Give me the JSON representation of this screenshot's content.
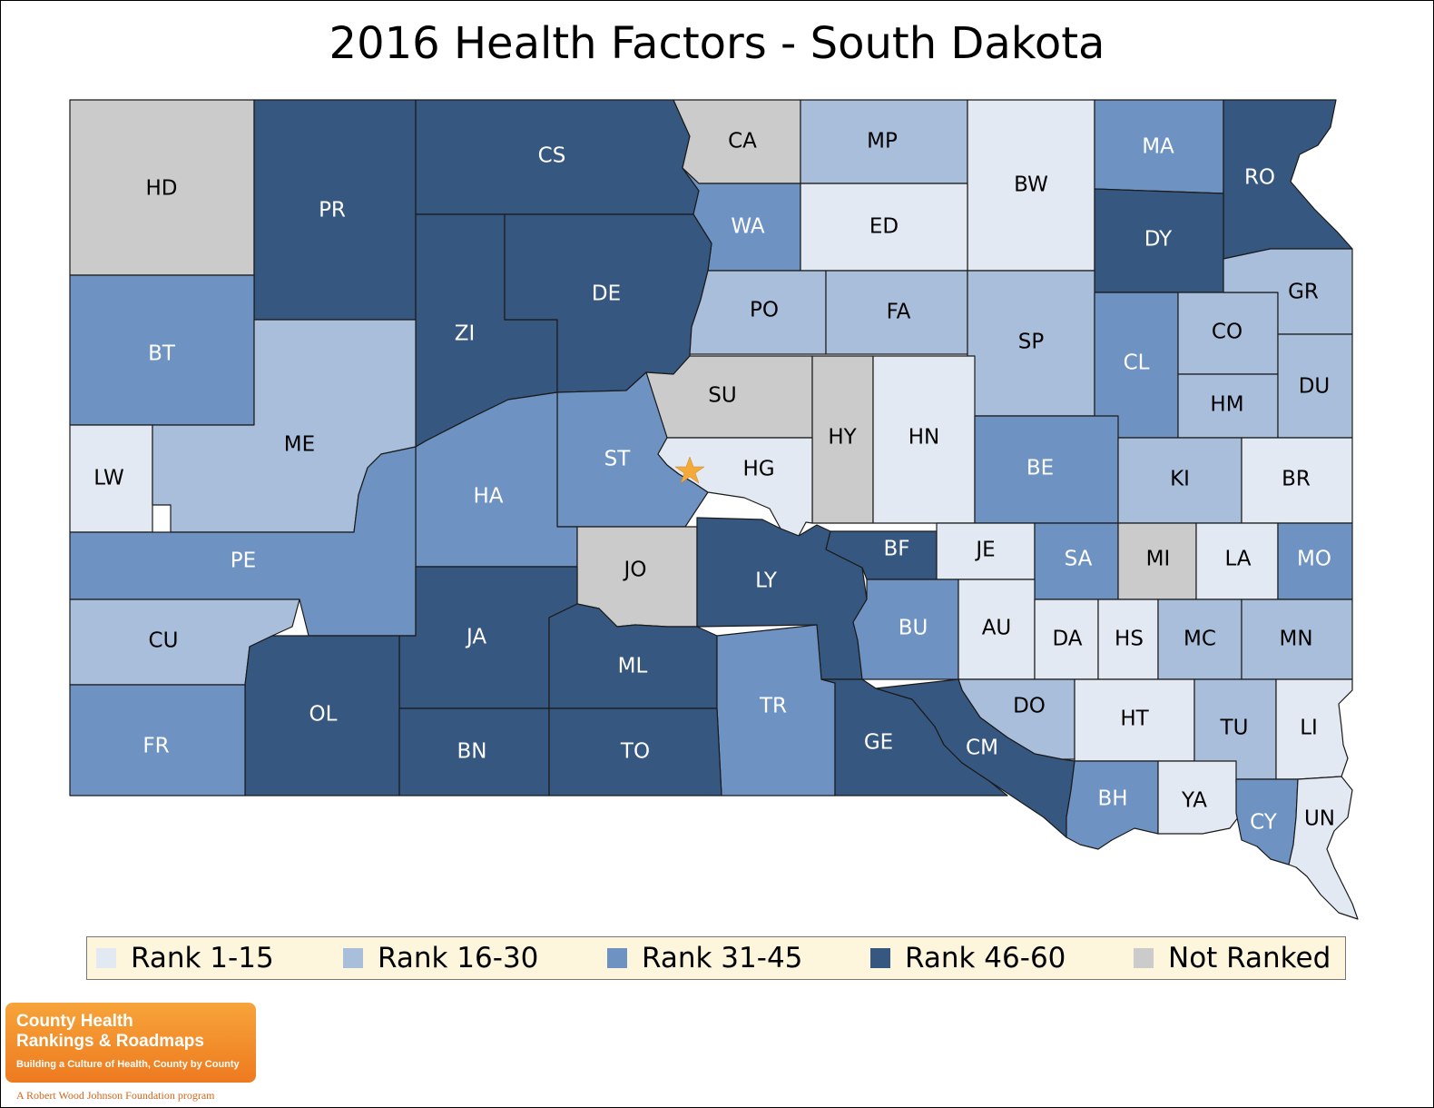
{
  "title": "2016 Health Factors - South Dakota",
  "colors": {
    "rank_1_15": "#e3e9f3",
    "rank_16_30": "#a9bedb",
    "rank_31_45": "#6e93c2",
    "rank_46_60": "#36577f",
    "not_ranked": "#cbcbcb",
    "border": "#1a1a1a",
    "star": "#f4a93b"
  },
  "legend": [
    {
      "key": "rank_1_15",
      "label": "Rank 1-15"
    },
    {
      "key": "rank_16_30",
      "label": "Rank 16-30"
    },
    {
      "key": "rank_31_45",
      "label": "Rank 31-45"
    },
    {
      "key": "rank_46_60",
      "label": "Rank 46-60"
    },
    {
      "key": "not_ranked",
      "label": "Not Ranked"
    }
  ],
  "counties": [
    {
      "code": "HD",
      "category": "not_ranked"
    },
    {
      "code": "PR",
      "category": "rank_46_60"
    },
    {
      "code": "CS",
      "category": "rank_46_60"
    },
    {
      "code": "CA",
      "category": "not_ranked"
    },
    {
      "code": "MP",
      "category": "rank_16_30"
    },
    {
      "code": "BW",
      "category": "rank_1_15"
    },
    {
      "code": "MA",
      "category": "rank_31_45"
    },
    {
      "code": "RO",
      "category": "rank_46_60"
    },
    {
      "code": "WA",
      "category": "rank_31_45"
    },
    {
      "code": "ED",
      "category": "rank_1_15"
    },
    {
      "code": "DY",
      "category": "rank_46_60"
    },
    {
      "code": "BT",
      "category": "rank_31_45"
    },
    {
      "code": "ZI",
      "category": "rank_46_60"
    },
    {
      "code": "DE",
      "category": "rank_46_60"
    },
    {
      "code": "PO",
      "category": "rank_16_30"
    },
    {
      "code": "FA",
      "category": "rank_16_30"
    },
    {
      "code": "SP",
      "category": "rank_16_30"
    },
    {
      "code": "CL",
      "category": "rank_31_45"
    },
    {
      "code": "CO",
      "category": "rank_16_30"
    },
    {
      "code": "GR",
      "category": "rank_16_30"
    },
    {
      "code": "HM",
      "category": "rank_16_30"
    },
    {
      "code": "DU",
      "category": "rank_16_30"
    },
    {
      "code": "LW",
      "category": "rank_1_15"
    },
    {
      "code": "ME",
      "category": "rank_16_30"
    },
    {
      "code": "SU",
      "category": "not_ranked"
    },
    {
      "code": "HY",
      "category": "not_ranked"
    },
    {
      "code": "HN",
      "category": "rank_1_15"
    },
    {
      "code": "ST",
      "category": "rank_31_45"
    },
    {
      "code": "HG",
      "category": "rank_1_15"
    },
    {
      "code": "HA",
      "category": "rank_31_45"
    },
    {
      "code": "BE",
      "category": "rank_31_45"
    },
    {
      "code": "KI",
      "category": "rank_16_30"
    },
    {
      "code": "BR",
      "category": "rank_1_15"
    },
    {
      "code": "PE",
      "category": "rank_31_45"
    },
    {
      "code": "JO",
      "category": "not_ranked"
    },
    {
      "code": "LY",
      "category": "rank_46_60"
    },
    {
      "code": "BF",
      "category": "rank_46_60"
    },
    {
      "code": "JE",
      "category": "rank_1_15"
    },
    {
      "code": "SA",
      "category": "rank_31_45"
    },
    {
      "code": "MI",
      "category": "not_ranked"
    },
    {
      "code": "LA",
      "category": "rank_1_15"
    },
    {
      "code": "MO",
      "category": "rank_31_45"
    },
    {
      "code": "CU",
      "category": "rank_16_30"
    },
    {
      "code": "JA",
      "category": "rank_46_60"
    },
    {
      "code": "ML",
      "category": "rank_46_60"
    },
    {
      "code": "BU",
      "category": "rank_31_45"
    },
    {
      "code": "AU",
      "category": "rank_1_15"
    },
    {
      "code": "DA",
      "category": "rank_1_15"
    },
    {
      "code": "HS",
      "category": "rank_1_15"
    },
    {
      "code": "MC",
      "category": "rank_16_30"
    },
    {
      "code": "MN",
      "category": "rank_16_30"
    },
    {
      "code": "OL",
      "category": "rank_46_60"
    },
    {
      "code": "TR",
      "category": "rank_31_45"
    },
    {
      "code": "DO",
      "category": "rank_16_30"
    },
    {
      "code": "HT",
      "category": "rank_1_15"
    },
    {
      "code": "TU",
      "category": "rank_16_30"
    },
    {
      "code": "LI",
      "category": "rank_1_15"
    },
    {
      "code": "FR",
      "category": "rank_31_45"
    },
    {
      "code": "BN",
      "category": "rank_46_60"
    },
    {
      "code": "TO",
      "category": "rank_46_60"
    },
    {
      "code": "GE",
      "category": "rank_46_60"
    },
    {
      "code": "CM",
      "category": "rank_46_60"
    },
    {
      "code": "BH",
      "category": "rank_31_45"
    },
    {
      "code": "YA",
      "category": "rank_1_15"
    },
    {
      "code": "CY",
      "category": "rank_31_45"
    },
    {
      "code": "UN",
      "category": "rank_1_15"
    }
  ],
  "logo": {
    "line1": "County Health",
    "line2": "Rankings & Roadmaps",
    "tagline": "Building a Culture of Health, County by County",
    "attribution": "A Robert Wood Johnson Foundation program"
  }
}
